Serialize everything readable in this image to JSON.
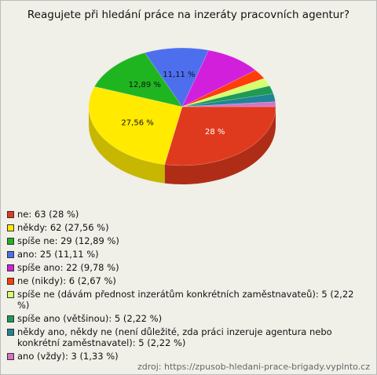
{
  "chart_data": {
    "type": "pie",
    "title": "Reagujete při hledání práce na inzeráty pracovních agentur?",
    "categories": [
      "ne",
      "někdy",
      "spíše ne",
      "ano",
      "spíše ano",
      "ne (nikdy)",
      "spíše ne (dávám přednost inzerátům konkrétních zaměstnavateů)",
      "spíše ano (většinou)",
      "někdy ano, někdy ne (není důležité, zda práci inzeruje agentura nebo konkrétní zaměstnavatel)",
      "ano (vždy)"
    ],
    "values": [
      28,
      27.56,
      12.89,
      11.11,
      9.78,
      2.67,
      2.22,
      2.22,
      2.22,
      1.33
    ],
    "value_labels": [
      "28 %",
      "27,56 %",
      "12,89 %",
      "11,11 %",
      null,
      null,
      null,
      null,
      null,
      null
    ],
    "colors": [
      "#e03a1e",
      "#ffea00",
      "#1fb521",
      "#4d6fee",
      "#d21fdc",
      "#ff3d0a",
      "#d4ff6e",
      "#1e9a55",
      "#1f8596",
      "#d872c8"
    ],
    "legend": [
      "ne: 63 (28 %)",
      "někdy: 62 (27,56 %)",
      "spíše ne: 29 (12,89 %)",
      "ano: 25 (11,11 %)",
      "spíše ano: 22 (9,78 %)",
      "ne (nikdy): 6 (2,67 %)",
      "spíše ne (dávám přednost inzerátům konkrétních zaměstnavateů): 5 (2,22 %)",
      "spíše ano (většinou): 5 (2,22 %)",
      "někdy ano, někdy ne (není důležité, zda práci inzeruje agentura nebo konkrétní zaměstnavatel): 5 (2,22 %)",
      "ano (vždy): 3 (1,33 %)"
    ],
    "source": "zdroj: https://zpusob-hledani-prace-brigady.vyplnto.cz"
  }
}
